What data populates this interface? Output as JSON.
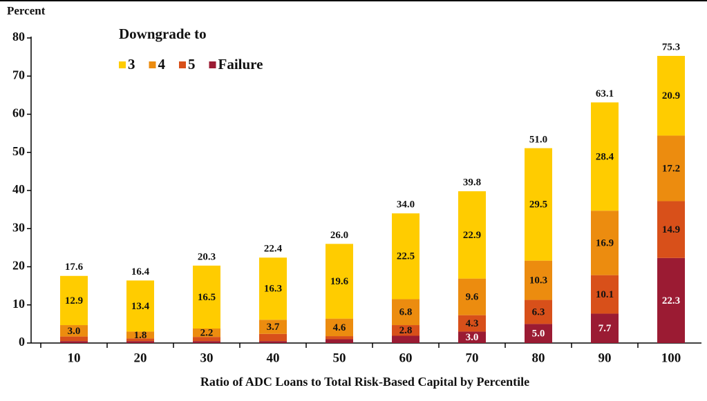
{
  "chart_data": {
    "type": "stacked-bar",
    "y_label": "Percent",
    "x_label": "Ratio of ADC Loans to Total Risk-Based Capital by Percentile",
    "legend_title": "Downgrade to",
    "categories": [
      "10",
      "20",
      "30",
      "40",
      "50",
      "60",
      "70",
      "80",
      "90",
      "100"
    ],
    "series": [
      {
        "name": "Failure",
        "color": "#9b1b33",
        "label_color": "#ffffff",
        "values": [
          0.5,
          0.5,
          0.5,
          0.5,
          1.0,
          1.9,
          3.0,
          5.0,
          7.7,
          22.3
        ],
        "value_labels": [
          null,
          null,
          null,
          null,
          null,
          null,
          "3.0",
          "5.0",
          "7.7",
          "22.3"
        ]
      },
      {
        "name": "5",
        "color": "#d8501a",
        "label_color": "#111111",
        "values": [
          1.2,
          0.7,
          1.1,
          1.9,
          0.8,
          2.8,
          4.3,
          6.3,
          10.1,
          14.9
        ],
        "value_labels": [
          null,
          null,
          null,
          null,
          null,
          "2.8",
          "4.3",
          "6.3",
          "10.1",
          "14.9"
        ]
      },
      {
        "name": "4",
        "color": "#ec8c0f",
        "label_color": "#111111",
        "values": [
          3.0,
          1.8,
          2.2,
          3.7,
          4.6,
          6.8,
          9.6,
          10.3,
          16.9,
          17.2
        ],
        "value_labels": [
          "3.0",
          "1.8",
          "2.2",
          "3.7",
          "4.6",
          "6.8",
          "9.6",
          "10.3",
          "16.9",
          "17.2"
        ]
      },
      {
        "name": "3",
        "color": "#ffcc00",
        "label_color": "#111111",
        "values": [
          12.9,
          13.4,
          16.5,
          16.3,
          19.6,
          22.5,
          22.9,
          29.5,
          28.4,
          20.9
        ],
        "value_labels": [
          "12.9",
          "13.4",
          "16.5",
          "16.3",
          "19.6",
          "22.5",
          "22.9",
          "29.5",
          "28.4",
          "20.9"
        ]
      }
    ],
    "totals": [
      17.6,
      16.4,
      20.3,
      22.4,
      26.0,
      34.0,
      39.8,
      51.0,
      63.1,
      75.3
    ],
    "total_labels": [
      "17.6",
      "16.4",
      "20.3",
      "22.4",
      "26.0",
      "34.0",
      "39.8",
      "51.0",
      "63.1",
      "75.3"
    ],
    "ylim": [
      0,
      80
    ],
    "yticks": [
      0,
      10,
      20,
      30,
      40,
      50,
      60,
      70,
      80
    ],
    "grid": false
  }
}
